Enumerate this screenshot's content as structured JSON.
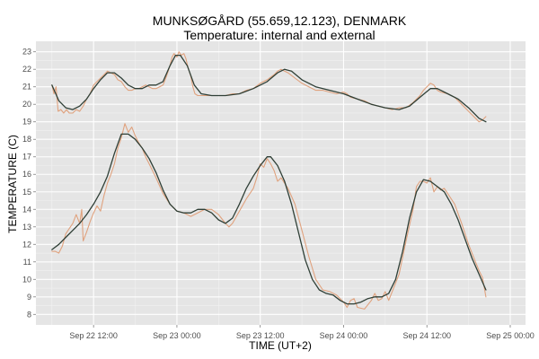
{
  "chart_data": {
    "type": "line",
    "title": "MUNKSØGÅRD (55.659,12.123), DENMARK",
    "subtitle": "Temperature: internal and external",
    "xlabel": "TIME (UT+2)",
    "ylabel": "TEMPERATURE (C)",
    "x_unit": "hours since Sep 22 00:00",
    "xlim": [
      3.7,
      74.2
    ],
    "ylim": [
      7.4,
      23.6
    ],
    "x_ticks": [
      {
        "x": 12,
        "label": "Sep 22 12:00"
      },
      {
        "x": 24,
        "label": "Sep 23 00:00"
      },
      {
        "x": 36,
        "label": "Sep 23 12:00"
      },
      {
        "x": 48,
        "label": "Sep 24 00:00"
      },
      {
        "x": 60,
        "label": "Sep 24 12:00"
      },
      {
        "x": 72,
        "label": "Sep 25 00:00"
      }
    ],
    "y_ticks": [
      8,
      9,
      10,
      11,
      12,
      13,
      14,
      15,
      16,
      17,
      18,
      19,
      20,
      21,
      22,
      23
    ],
    "grid": true,
    "background": "#e5e5e5",
    "series": [
      {
        "name": "",
        "kind": "raw",
        "color": "#e0a27e",
        "points": [
          [
            6,
            21.1
          ],
          [
            6.3,
            20.6
          ],
          [
            6.6,
            21.0
          ],
          [
            6.9,
            19.6
          ],
          [
            7.3,
            19.7
          ],
          [
            7.7,
            19.5
          ],
          [
            8.1,
            19.7
          ],
          [
            8.5,
            19.5
          ],
          [
            9,
            19.5
          ],
          [
            9.5,
            19.7
          ],
          [
            10,
            19.6
          ],
          [
            10.5,
            19.9
          ],
          [
            11,
            20.3
          ],
          [
            11.5,
            20.6
          ],
          [
            12,
            21.1
          ],
          [
            12.5,
            21.3
          ],
          [
            13,
            21.5
          ],
          [
            13.5,
            21.7
          ],
          [
            14,
            21.9
          ],
          [
            14.5,
            21.8
          ],
          [
            15,
            21.7
          ],
          [
            15.5,
            21.4
          ],
          [
            16,
            21.3
          ],
          [
            16.5,
            21.0
          ],
          [
            17,
            20.8
          ],
          [
            17.5,
            20.8
          ],
          [
            18,
            20.9
          ],
          [
            18.5,
            20.9
          ],
          [
            19,
            21.0
          ],
          [
            19.5,
            21.1
          ],
          [
            20,
            21.0
          ],
          [
            20.5,
            20.9
          ],
          [
            21,
            20.9
          ],
          [
            21.5,
            21.0
          ],
          [
            22,
            21.1
          ],
          [
            22.5,
            21.6
          ],
          [
            23,
            22.2
          ],
          [
            23.3,
            22.7
          ],
          [
            23.6,
            22.9
          ],
          [
            24,
            22.7
          ],
          [
            24.3,
            23.0
          ],
          [
            24.6,
            22.8
          ],
          [
            25,
            22.9
          ],
          [
            25.3,
            22.6
          ],
          [
            25.6,
            22.1
          ],
          [
            26,
            21.6
          ],
          [
            26.3,
            21.0
          ],
          [
            26.6,
            20.6
          ],
          [
            27,
            20.5
          ],
          [
            27.5,
            20.5
          ],
          [
            28,
            20.5
          ],
          [
            29,
            20.5
          ],
          [
            30,
            20.5
          ],
          [
            31,
            20.5
          ],
          [
            32,
            20.6
          ],
          [
            33,
            20.6
          ],
          [
            34,
            20.8
          ],
          [
            35,
            20.9
          ],
          [
            36,
            21.2
          ],
          [
            37,
            21.4
          ],
          [
            38,
            21.7
          ],
          [
            38.5,
            21.9
          ],
          [
            39,
            22.0
          ],
          [
            39.5,
            21.9
          ],
          [
            40,
            21.8
          ],
          [
            41,
            21.5
          ],
          [
            42,
            21.2
          ],
          [
            43,
            21.0
          ],
          [
            44,
            20.8
          ],
          [
            45,
            20.8
          ],
          [
            46,
            20.7
          ],
          [
            47,
            20.6
          ],
          [
            48,
            20.7
          ],
          [
            48.5,
            20.6
          ],
          [
            49,
            20.4
          ],
          [
            50,
            20.3
          ],
          [
            51,
            20.2
          ],
          [
            52,
            20.0
          ],
          [
            53,
            19.9
          ],
          [
            54,
            19.8
          ],
          [
            55,
            19.7
          ],
          [
            56,
            19.8
          ],
          [
            57,
            19.8
          ],
          [
            58,
            20.1
          ],
          [
            59,
            20.5
          ],
          [
            59.5,
            20.8
          ],
          [
            60,
            21.0
          ],
          [
            60.5,
            21.2
          ],
          [
            61,
            21.1
          ],
          [
            61.5,
            20.8
          ],
          [
            62,
            20.7
          ],
          [
            63,
            20.6
          ],
          [
            64,
            20.4
          ],
          [
            65,
            20.0
          ],
          [
            66,
            19.6
          ],
          [
            67,
            19.2
          ],
          [
            67.5,
            19.0
          ],
          [
            68,
            19.1
          ],
          [
            68.5,
            19.3
          ]
        ]
      },
      {
        "name": "",
        "kind": "smooth",
        "color": "#2f3f36",
        "points": [
          [
            6,
            21.1
          ],
          [
            7,
            20.2
          ],
          [
            8,
            19.8
          ],
          [
            9,
            19.7
          ],
          [
            10,
            19.9
          ],
          [
            11,
            20.3
          ],
          [
            12,
            20.9
          ],
          [
            13,
            21.4
          ],
          [
            14,
            21.8
          ],
          [
            15,
            21.8
          ],
          [
            16,
            21.5
          ],
          [
            17,
            21.1
          ],
          [
            18,
            20.9
          ],
          [
            19,
            20.9
          ],
          [
            20,
            21.1
          ],
          [
            21,
            21.1
          ],
          [
            22,
            21.3
          ],
          [
            23,
            22.2
          ],
          [
            23.8,
            22.8
          ],
          [
            24.5,
            22.8
          ],
          [
            25.5,
            22.2
          ],
          [
            26.5,
            21.1
          ],
          [
            27.5,
            20.6
          ],
          [
            29,
            20.5
          ],
          [
            31,
            20.5
          ],
          [
            33,
            20.6
          ],
          [
            35,
            20.9
          ],
          [
            37,
            21.3
          ],
          [
            38.5,
            21.8
          ],
          [
            39.5,
            22.0
          ],
          [
            40.5,
            21.9
          ],
          [
            42,
            21.4
          ],
          [
            44,
            21.0
          ],
          [
            46,
            20.8
          ],
          [
            48,
            20.6
          ],
          [
            50,
            20.3
          ],
          [
            52,
            20.0
          ],
          [
            54,
            19.8
          ],
          [
            56,
            19.7
          ],
          [
            57.5,
            19.9
          ],
          [
            59,
            20.4
          ],
          [
            60.5,
            20.9
          ],
          [
            61.5,
            20.9
          ],
          [
            63,
            20.6
          ],
          [
            64.5,
            20.3
          ],
          [
            66,
            19.8
          ],
          [
            67.5,
            19.2
          ],
          [
            68.5,
            19.0
          ]
        ]
      },
      {
        "name": "",
        "kind": "raw",
        "color": "#e0a27e",
        "points": [
          [
            6,
            11.6
          ],
          [
            6.5,
            11.6
          ],
          [
            7,
            11.5
          ],
          [
            7.5,
            11.9
          ],
          [
            8,
            12.6
          ],
          [
            8.5,
            12.9
          ],
          [
            9,
            13.2
          ],
          [
            9.5,
            13.7
          ],
          [
            10,
            13.2
          ],
          [
            10.3,
            14.0
          ],
          [
            10.5,
            12.2
          ],
          [
            11,
            12.7
          ],
          [
            11.5,
            13.3
          ],
          [
            12,
            13.8
          ],
          [
            12.5,
            14.2
          ],
          [
            13,
            13.9
          ],
          [
            13.5,
            14.8
          ],
          [
            14,
            15.5
          ],
          [
            14.5,
            16.0
          ],
          [
            15,
            16.6
          ],
          [
            15.5,
            17.5
          ],
          [
            16,
            18.1
          ],
          [
            16.5,
            18.9
          ],
          [
            17,
            18.4
          ],
          [
            17.5,
            18.7
          ],
          [
            18,
            18.2
          ],
          [
            18.5,
            17.8
          ],
          [
            19,
            17.5
          ],
          [
            19.5,
            17.0
          ],
          [
            20,
            16.6
          ],
          [
            21,
            15.8
          ],
          [
            22,
            14.9
          ],
          [
            23,
            14.3
          ],
          [
            24,
            13.9
          ],
          [
            25,
            13.8
          ],
          [
            26,
            13.6
          ],
          [
            27,
            13.8
          ],
          [
            28,
            14.0
          ],
          [
            29,
            14.0
          ],
          [
            30,
            13.7
          ],
          [
            31,
            13.2
          ],
          [
            31.5,
            13.0
          ],
          [
            32,
            13.2
          ],
          [
            33,
            13.9
          ],
          [
            34,
            14.6
          ],
          [
            35,
            15.2
          ],
          [
            35.5,
            15.8
          ],
          [
            36,
            16.6
          ],
          [
            36.5,
            16.4
          ],
          [
            37,
            16.9
          ],
          [
            37.5,
            16.6
          ],
          [
            38,
            16.2
          ],
          [
            38.5,
            15.6
          ],
          [
            39,
            15.8
          ],
          [
            40,
            15.2
          ],
          [
            41,
            14.3
          ],
          [
            42,
            12.8
          ],
          [
            43,
            11.3
          ],
          [
            44,
            10.0
          ],
          [
            45,
            9.4
          ],
          [
            46,
            9.3
          ],
          [
            47,
            9.1
          ],
          [
            48,
            8.7
          ],
          [
            48.5,
            8.4
          ],
          [
            49,
            8.8
          ],
          [
            49.5,
            8.9
          ],
          [
            50,
            8.4
          ],
          [
            51,
            8.3
          ],
          [
            52,
            8.8
          ],
          [
            52.5,
            9.2
          ],
          [
            53,
            8.8
          ],
          [
            53.5,
            8.9
          ],
          [
            54,
            9.3
          ],
          [
            54.5,
            8.8
          ],
          [
            55,
            9.3
          ],
          [
            56,
            10.3
          ],
          [
            57,
            12.2
          ],
          [
            58,
            14.0
          ],
          [
            58.5,
            15.3
          ],
          [
            59,
            15.6
          ],
          [
            59.5,
            15.6
          ],
          [
            60,
            15.5
          ],
          [
            60.5,
            15.8
          ],
          [
            61,
            15.0
          ],
          [
            61.5,
            15.3
          ],
          [
            62,
            15.1
          ],
          [
            62.5,
            15.2
          ],
          [
            63,
            14.9
          ],
          [
            64,
            14.3
          ],
          [
            65,
            13.2
          ],
          [
            66,
            12.0
          ],
          [
            67,
            11.0
          ],
          [
            67.5,
            10.5
          ],
          [
            68,
            10.1
          ],
          [
            68.5,
            9.0
          ]
        ]
      },
      {
        "name": "",
        "kind": "smooth",
        "color": "#2f3f36",
        "points": [
          [
            6,
            11.7
          ],
          [
            7,
            12.0
          ],
          [
            8,
            12.4
          ],
          [
            9,
            12.8
          ],
          [
            10,
            13.2
          ],
          [
            11,
            13.7
          ],
          [
            12,
            14.3
          ],
          [
            13,
            15.0
          ],
          [
            14,
            15.9
          ],
          [
            15,
            17.2
          ],
          [
            16,
            18.3
          ],
          [
            17,
            18.3
          ],
          [
            18,
            18.0
          ],
          [
            19,
            17.5
          ],
          [
            20,
            16.9
          ],
          [
            21,
            16.1
          ],
          [
            22,
            15.1
          ],
          [
            23,
            14.3
          ],
          [
            24,
            13.9
          ],
          [
            25,
            13.8
          ],
          [
            26,
            13.8
          ],
          [
            27,
            14.0
          ],
          [
            28,
            14.0
          ],
          [
            29,
            13.8
          ],
          [
            30,
            13.4
          ],
          [
            31,
            13.2
          ],
          [
            32,
            13.5
          ],
          [
            33,
            14.3
          ],
          [
            34,
            15.2
          ],
          [
            35,
            15.9
          ],
          [
            36,
            16.5
          ],
          [
            37,
            17.0
          ],
          [
            37.5,
            17.0
          ],
          [
            38.5,
            16.5
          ],
          [
            39.5,
            15.6
          ],
          [
            40.5,
            14.3
          ],
          [
            41.5,
            12.7
          ],
          [
            42.5,
            11.1
          ],
          [
            43.5,
            10.0
          ],
          [
            44.5,
            9.4
          ],
          [
            45.5,
            9.2
          ],
          [
            46.5,
            9.1
          ],
          [
            47.5,
            8.8
          ],
          [
            48.5,
            8.6
          ],
          [
            49.5,
            8.6
          ],
          [
            50.5,
            8.7
          ],
          [
            51.5,
            8.9
          ],
          [
            52.5,
            9.0
          ],
          [
            53.5,
            9.0
          ],
          [
            54.5,
            9.2
          ],
          [
            55.5,
            10.0
          ],
          [
            56.5,
            11.6
          ],
          [
            57.5,
            13.5
          ],
          [
            58.5,
            15.0
          ],
          [
            59.5,
            15.7
          ],
          [
            60.5,
            15.6
          ],
          [
            61.5,
            15.3
          ],
          [
            62.5,
            15.0
          ],
          [
            63.5,
            14.3
          ],
          [
            64.5,
            13.4
          ],
          [
            65.5,
            12.3
          ],
          [
            66.5,
            11.2
          ],
          [
            67.5,
            10.3
          ],
          [
            68.5,
            9.4
          ]
        ]
      }
    ]
  }
}
